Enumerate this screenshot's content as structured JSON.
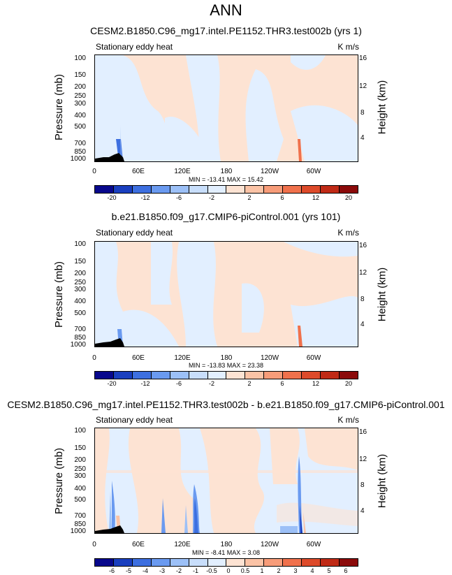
{
  "page_title": "ANN",
  "chart_data": [
    {
      "type": "heatmap",
      "title": "CESM2.B1850.C96_mg17.intel.PE1152.THR3.test002b (yrs 1)",
      "subtitle": "Stationary eddy heat",
      "units": "K m/s",
      "ylabel": "Pressure (mb)",
      "ylabel_right": "Height (km)",
      "pressure_ticks": [
        "100",
        "150",
        "200",
        "250",
        "300",
        "400",
        "500",
        "700",
        "850",
        "1000"
      ],
      "height_ticks": [
        "16",
        "12",
        "8",
        "4"
      ],
      "xticks": [
        "0",
        "60E",
        "120E",
        "180",
        "120W",
        "60W"
      ],
      "minmax": "MIN = -13.41  MAX =  15.42",
      "colorbar_labels": [
        "-20",
        "-12",
        "-6",
        "-2",
        "2",
        "6",
        "12",
        "20"
      ]
    },
    {
      "type": "heatmap",
      "title": "b.e21.B1850.f09_g17.CMIP6-piControl.001 (yrs 101)",
      "subtitle": "Stationary eddy heat",
      "units": "K m/s",
      "ylabel": "Pressure (mb)",
      "ylabel_right": "Height (km)",
      "pressure_ticks": [
        "100",
        "150",
        "200",
        "250",
        "300",
        "400",
        "500",
        "700",
        "850",
        "1000"
      ],
      "height_ticks": [
        "16",
        "12",
        "8",
        "4"
      ],
      "xticks": [
        "0",
        "60E",
        "120E",
        "180",
        "120W",
        "60W"
      ],
      "minmax": "MIN = -13.83  MAX =  23.38",
      "colorbar_labels": [
        "-20",
        "-12",
        "-6",
        "-2",
        "2",
        "6",
        "12",
        "20"
      ]
    },
    {
      "type": "heatmap",
      "title": "CESM2.B1850.C96_mg17.intel.PE1152.THR3.test002b - b.e21.B1850.f09_g17.CMIP6-piControl.001",
      "subtitle": "Stationary eddy heat",
      "units": "K m/s",
      "ylabel": "Pressure (mb)",
      "ylabel_right": "Height (km)",
      "pressure_ticks": [
        "100",
        "150",
        "200",
        "250",
        "300",
        "400",
        "500",
        "700",
        "850",
        "1000"
      ],
      "height_ticks": [
        "16",
        "12",
        "8",
        "4"
      ],
      "xticks": [
        "0",
        "60E",
        "120E",
        "180",
        "120W",
        "60W"
      ],
      "minmax": "MIN = -8.41  MAX =   3.08",
      "colorbar_labels": [
        "-6",
        "-5",
        "-4",
        "-3",
        "-2",
        "-1",
        "-0.5",
        "0",
        "0.5",
        "1",
        "2",
        "3",
        "4",
        "5",
        "6"
      ]
    }
  ],
  "colorbar_colors": [
    "#08088c",
    "#1a3fbf",
    "#3d6fe0",
    "#6a9af0",
    "#9cc0f7",
    "#c8defb",
    "#e2efff",
    "#fde3d3",
    "#fbc3a6",
    "#f79c79",
    "#f0714c",
    "#dd4a2a",
    "#c02a16",
    "#8b0a0a"
  ]
}
